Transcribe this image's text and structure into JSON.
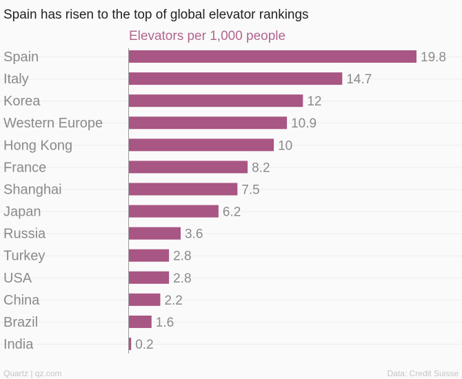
{
  "chart_data": {
    "type": "bar",
    "orientation": "horizontal",
    "title": "Spain has risen to the top of global elevator rankings",
    "subtitle": "Elevators per 1,000 people",
    "categories": [
      "Spain",
      "Italy",
      "Korea",
      "Western Europe",
      "Hong Kong",
      "France",
      "Shanghai",
      "Japan",
      "Russia",
      "Turkey",
      "USA",
      "China",
      "Brazil",
      "India"
    ],
    "values": [
      19.8,
      14.7,
      12,
      10.9,
      10,
      8.2,
      7.5,
      6.2,
      3.6,
      2.8,
      2.8,
      2.2,
      1.6,
      0.2
    ],
    "value_labels": [
      "19.8",
      "14.7",
      "12",
      "10.9",
      "10",
      "8.2",
      "7.5",
      "6.2",
      "3.6",
      "2.8",
      "2.8",
      "2.2",
      "1.6",
      "0.2"
    ],
    "xlim": [
      0,
      19.8
    ],
    "bar_color": "#a85683",
    "grid": false
  },
  "footer": {
    "left": "Quartz | qz.com",
    "right": "Data: Credit Suisse"
  }
}
